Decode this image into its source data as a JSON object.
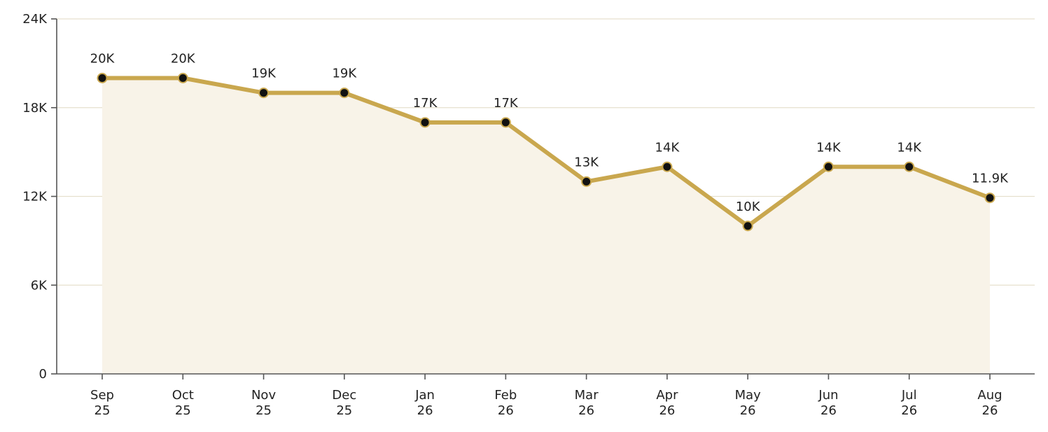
{
  "chart_data": {
    "type": "line",
    "title": "",
    "xlabel": "",
    "ylabel": "",
    "categories": [
      [
        "Sep",
        "25"
      ],
      [
        "Oct",
        "25"
      ],
      [
        "Nov",
        "25"
      ],
      [
        "Dec",
        "25"
      ],
      [
        "Jan",
        "26"
      ],
      [
        "Feb",
        "26"
      ],
      [
        "Mar",
        "26"
      ],
      [
        "Apr",
        "26"
      ],
      [
        "May",
        "26"
      ],
      [
        "Jun",
        "26"
      ],
      [
        "Jul",
        "26"
      ],
      [
        "Aug",
        "26"
      ]
    ],
    "series": [
      {
        "values": [
          20000,
          20000,
          19000,
          19000,
          17000,
          17000,
          13000,
          14000,
          10000,
          14000,
          14000,
          11900
        ],
        "data_labels": [
          "20K",
          "20K",
          "19K",
          "19K",
          "17K",
          "17K",
          "13K",
          "14K",
          "10K",
          "14K",
          "14K",
          "11.9K"
        ],
        "color": "#C9A74E",
        "marker_color": "#111111",
        "area_fill": "#F8F3E8"
      }
    ],
    "ylim": [
      0,
      24000
    ],
    "yticks": [
      0,
      6000,
      12000,
      18000,
      24000
    ],
    "ytick_labels": [
      "0",
      "6K",
      "12K",
      "18K",
      "24K"
    ],
    "grid": "horizontal",
    "grid_color": "#E6E0CE",
    "axis_color": "#555555"
  }
}
